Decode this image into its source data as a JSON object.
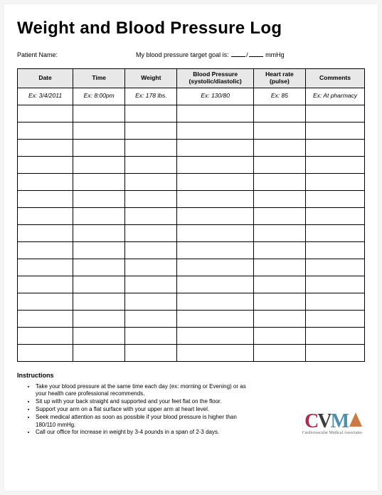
{
  "title": "Weight and Blood Pressure Log",
  "meta": {
    "patient_label": "Patient Name:",
    "goal_prefix": "My blood pressure target goal is:",
    "goal_unit": "mmHg"
  },
  "table": {
    "headers": {
      "date": "Date",
      "time": "Time",
      "weight": "Weight",
      "bp": "Blood Pressure (systolic/diastolic)",
      "hr": "Heart rate (pulse)",
      "comments": "Comments"
    },
    "example": {
      "date": "Ex:  3/4/2011",
      "time": "Ex: 8:00pm",
      "weight": "Ex:  178 lbs.",
      "bp": "Ex:   130/80",
      "hr": "Ex:   85",
      "comments": "Ex:  At pharmacy"
    },
    "blank_row_count": 15,
    "header_bg": "#e8e8e8",
    "border_color": "#000000"
  },
  "instructions": {
    "heading": "Instructions",
    "items": [
      "Take your blood pressure at the same time each day (ex: morning or Evening) or as your health care professional recommends.",
      "Sit up with your back straight and supported and your feet flat on the floor.",
      "Support your arm on a flat surface with your upper arm at heart level.",
      "Seek medical attention as soon as possible if your blood pressure is higher than 180/110 mmHg.",
      "Call our office for increase in weight by 3-4 pounds in a span of 2-3 days."
    ]
  },
  "logo": {
    "letters": {
      "c": "C",
      "v": "V",
      "m": "M"
    },
    "subtitle": "Cardiovascular Medical Associates",
    "colors": {
      "c": "#b02a4a",
      "v": "#3a3a3a",
      "m": "#4a8fb0",
      "a": "#cc7a44"
    }
  },
  "page_bg": "#ffffff"
}
